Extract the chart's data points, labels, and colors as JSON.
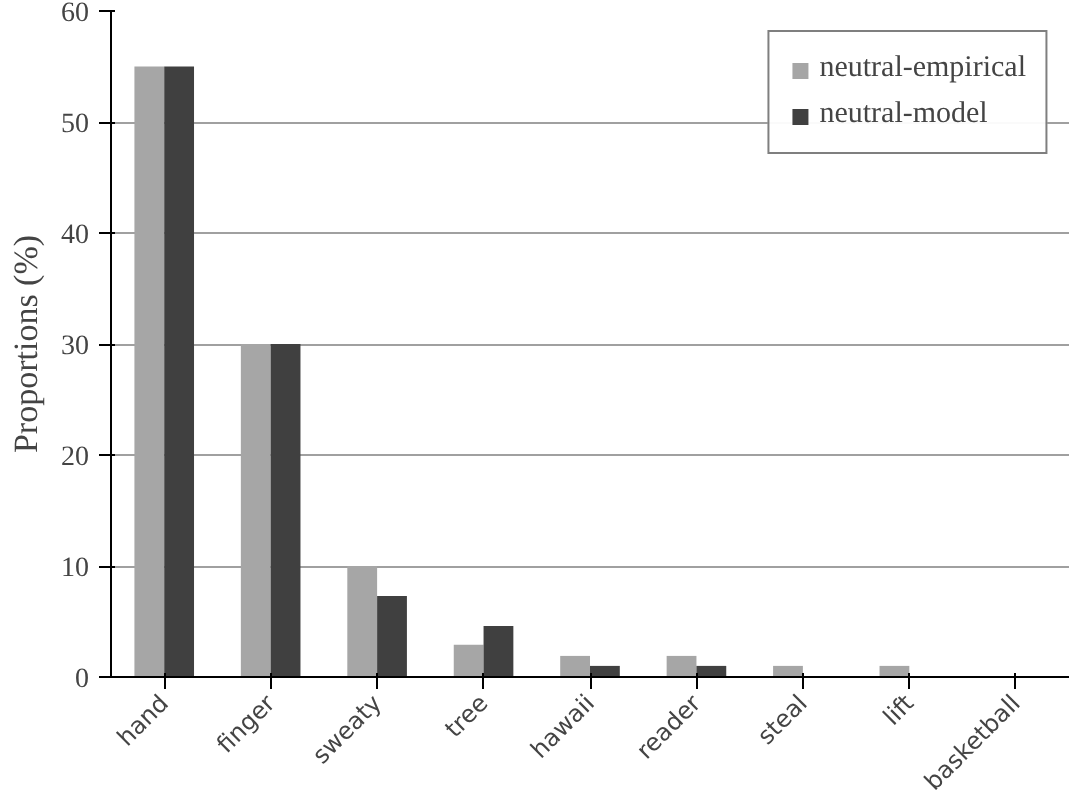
{
  "chart_data": {
    "type": "bar",
    "ylabel": "Proportions (%)",
    "categories": [
      "hand",
      "finger",
      "sweaty",
      "tree",
      "hawaii",
      "reader",
      "steal",
      "lift",
      "basketball"
    ],
    "series": [
      {
        "name": "neutral-empirical",
        "color": "#a6a6a6",
        "values": [
          55,
          30,
          10,
          2.9,
          1.9,
          1.9,
          1,
          1,
          0
        ]
      },
      {
        "name": "neutral-model",
        "color": "#404040",
        "values": [
          55,
          30,
          7.3,
          4.6,
          1,
          1,
          0,
          0,
          0
        ]
      }
    ],
    "ylim": [
      0,
      60
    ],
    "yticks": [
      0,
      10,
      20,
      30,
      40,
      50,
      60
    ],
    "grid": "y",
    "legend": "top right"
  }
}
